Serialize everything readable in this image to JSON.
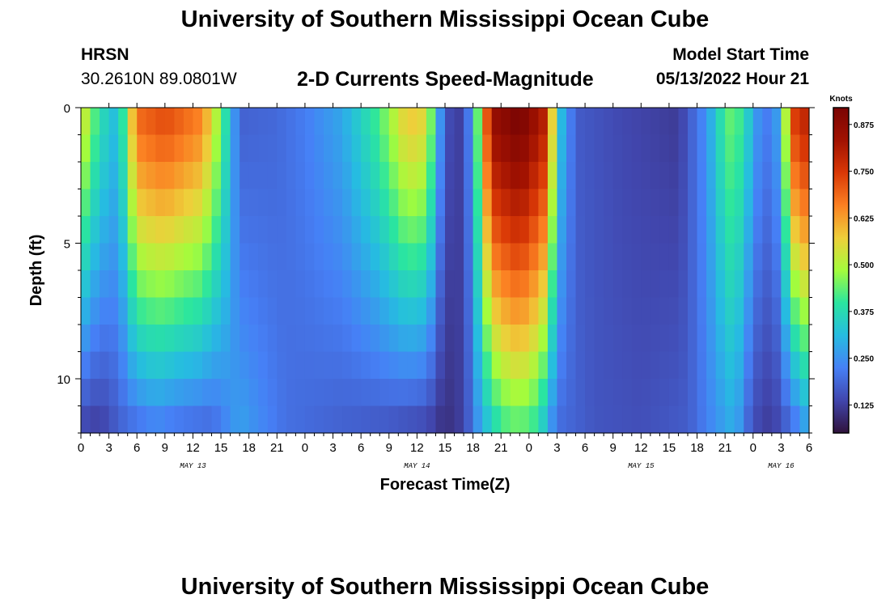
{
  "header": {
    "title": "University of Southern Mississippi Ocean Cube",
    "station": "HRSN",
    "coords": "30.2610N  89.0801W",
    "chart_title": "2-D Currents Speed-Magnitude",
    "model_start_label": "Model Start Time",
    "model_start_value": "05/13/2022 Hour 21"
  },
  "footer": {
    "title": "University of Southern Mississippi Ocean Cube"
  },
  "chart_data": {
    "type": "heatmap",
    "title": "2-D Currents Speed-Magnitude",
    "xlabel": "Forecast Time(Z)",
    "ylabel": "Depth (ft)",
    "x_hours_start": 0,
    "x_hours_end": 78,
    "x_tick_labels": [
      "0",
      "3",
      "6",
      "9",
      "12",
      "15",
      "18",
      "21",
      "0",
      "3",
      "6",
      "9",
      "12",
      "15",
      "18",
      "21",
      "0",
      "3",
      "6",
      "9",
      "12",
      "15",
      "18",
      "21",
      "0",
      "3",
      "6"
    ],
    "day_labels": [
      {
        "label": "MAY 13",
        "hour": 12
      },
      {
        "label": "MAY 14",
        "hour": 36
      },
      {
        "label": "MAY 15",
        "hour": 60
      },
      {
        "label": "MAY 16",
        "hour": 75
      }
    ],
    "ylim": [
      0,
      12
    ],
    "y_ticks": [
      0,
      5,
      10
    ],
    "y_tick_labels": [
      "0",
      "5",
      "10"
    ],
    "colorbar_label": "Knots",
    "colorbar_range": [
      0.05,
      0.92
    ],
    "colorbar_ticks": [
      0.125,
      0.25,
      0.375,
      0.5,
      0.625,
      0.75,
      0.875
    ],
    "colorbar_tick_labels": [
      "0.125",
      "0.250",
      "0.375",
      "0.500",
      "0.625",
      "0.750",
      "0.875"
    ],
    "depth_levels_ft": [
      0.5,
      1.5,
      2.5,
      3.5,
      4.5,
      5.5,
      6.5,
      7.5,
      8.5,
      9.5,
      10.5,
      11.5
    ],
    "surface_speed_profile": [
      {
        "hour": 0,
        "speed": 0.55
      },
      {
        "hour": 2,
        "speed": 0.38
      },
      {
        "hour": 4,
        "speed": 0.3
      },
      {
        "hour": 6,
        "speed": 0.68
      },
      {
        "hour": 9,
        "speed": 0.72
      },
      {
        "hour": 13,
        "speed": 0.65
      },
      {
        "hour": 15,
        "speed": 0.45
      },
      {
        "hour": 17,
        "speed": 0.18
      },
      {
        "hour": 21,
        "speed": 0.19
      },
      {
        "hour": 24,
        "speed": 0.22
      },
      {
        "hour": 28,
        "speed": 0.28
      },
      {
        "hour": 32,
        "speed": 0.42
      },
      {
        "hour": 35,
        "speed": 0.58
      },
      {
        "hour": 37,
        "speed": 0.55
      },
      {
        "hour": 39,
        "speed": 0.15
      },
      {
        "hour": 41,
        "speed": 0.12
      },
      {
        "hour": 42,
        "speed": 0.3
      },
      {
        "hour": 44,
        "speed": 0.85
      },
      {
        "hour": 47,
        "speed": 0.92
      },
      {
        "hour": 50,
        "speed": 0.78
      },
      {
        "hour": 51,
        "speed": 0.35
      },
      {
        "hour": 53,
        "speed": 0.17
      },
      {
        "hour": 58,
        "speed": 0.14
      },
      {
        "hour": 64,
        "speed": 0.12
      },
      {
        "hour": 67,
        "speed": 0.25
      },
      {
        "hour": 69,
        "speed": 0.42
      },
      {
        "hour": 70,
        "speed": 0.45
      },
      {
        "hour": 72,
        "speed": 0.3
      },
      {
        "hour": 73,
        "speed": 0.2
      },
      {
        "hour": 75,
        "speed": 0.28
      },
      {
        "hour": 76,
        "speed": 0.72
      },
      {
        "hour": 78,
        "speed": 0.8
      }
    ],
    "bottom_speed_profile": [
      {
        "hour": 0,
        "speed": 0.15
      },
      {
        "hour": 2,
        "speed": 0.13
      },
      {
        "hour": 5,
        "speed": 0.2
      },
      {
        "hour": 8,
        "speed": 0.24
      },
      {
        "hour": 10,
        "speed": 0.22
      },
      {
        "hour": 14,
        "speed": 0.2
      },
      {
        "hour": 17,
        "speed": 0.27
      },
      {
        "hour": 19,
        "speed": 0.24
      },
      {
        "hour": 22,
        "speed": 0.2
      },
      {
        "hour": 28,
        "speed": 0.18
      },
      {
        "hour": 33,
        "speed": 0.17
      },
      {
        "hour": 37,
        "speed": 0.15
      },
      {
        "hour": 39,
        "speed": 0.1
      },
      {
        "hour": 41,
        "speed": 0.13
      },
      {
        "hour": 43,
        "speed": 0.3
      },
      {
        "hour": 45,
        "speed": 0.42
      },
      {
        "hour": 47,
        "speed": 0.45
      },
      {
        "hour": 49,
        "speed": 0.4
      },
      {
        "hour": 51,
        "speed": 0.2
      },
      {
        "hour": 55,
        "speed": 0.16
      },
      {
        "hour": 60,
        "speed": 0.15
      },
      {
        "hour": 65,
        "speed": 0.17
      },
      {
        "hour": 68,
        "speed": 0.25
      },
      {
        "hour": 70,
        "speed": 0.3
      },
      {
        "hour": 72,
        "speed": 0.15
      },
      {
        "hour": 74,
        "speed": 0.12
      },
      {
        "hour": 76,
        "speed": 0.2
      },
      {
        "hour": 78,
        "speed": 0.3
      }
    ]
  }
}
